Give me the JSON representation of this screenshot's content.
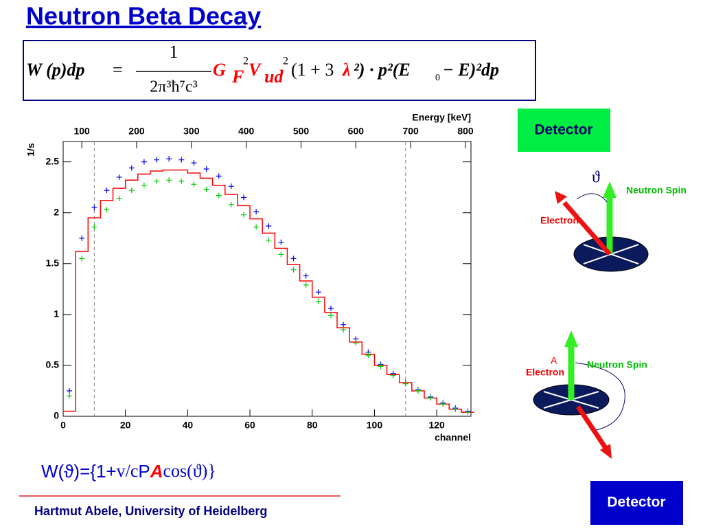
{
  "slide": {
    "title": "Neutron Beta Decay",
    "formula": [
      "W (p)dp",
      "=",
      "1",
      "2π³ħ⁷c³",
      "G",
      "F",
      "2",
      "V",
      "ud",
      "2",
      "(1 + 3",
      "λ",
      "²) · p²(E",
      "0",
      " − E)²dp"
    ],
    "detector_top": "Detector",
    "theta": "ϑ",
    "spin_top": "Neutron Spin",
    "electron_top": "Electron",
    "label_a": "A",
    "electron_bottom": "Electron",
    "spin_bottom": "Neutron Spin",
    "detector_bottom": "Detector",
    "asymmetry": [
      "W(ϑ)={1+",
      "v/c",
      "P",
      "A",
      "cos(ϑ)}"
    ],
    "footer": "Hartmut Abele, University of Heidelberg"
  },
  "chart_data": {
    "type": "scatter",
    "y_label": "1/s",
    "x_label": "channel",
    "x2_label": "Energy [keV]",
    "xlim": [
      0,
      131
    ],
    "xticks": [
      0,
      20,
      40,
      60,
      80,
      100,
      120
    ],
    "ylim": [
      0,
      2.7
    ],
    "yticks": [
      0,
      0.5,
      1,
      1.5,
      2,
      2.5
    ],
    "x2lim": [
      66,
      810
    ],
    "x2ticks": [
      100,
      200,
      300,
      400,
      500,
      600,
      700,
      800
    ],
    "vlines": [
      10,
      110
    ],
    "x": [
      2,
      6,
      10,
      14,
      18,
      22,
      26,
      30,
      34,
      38,
      42,
      46,
      50,
      54,
      58,
      62,
      66,
      70,
      74,
      78,
      82,
      86,
      90,
      94,
      98,
      102,
      106,
      110,
      114,
      118,
      122,
      126,
      130
    ],
    "series": [
      {
        "color": "#0000ff",
        "style": "marker",
        "values": [
          0.25,
          1.75,
          2.05,
          2.22,
          2.35,
          2.44,
          2.5,
          2.52,
          2.53,
          2.52,
          2.49,
          2.43,
          2.36,
          2.26,
          2.15,
          2.01,
          1.87,
          1.71,
          1.55,
          1.38,
          1.22,
          1.06,
          0.9,
          0.76,
          0.63,
          0.51,
          0.42,
          0.33,
          0.26,
          0.19,
          0.13,
          0.08,
          0.05
        ]
      },
      {
        "color": "#ff0000",
        "style": "step",
        "values": [
          0.05,
          1.62,
          1.95,
          2.12,
          2.24,
          2.32,
          2.38,
          2.41,
          2.42,
          2.42,
          2.39,
          2.34,
          2.27,
          2.18,
          2.07,
          1.94,
          1.8,
          1.65,
          1.49,
          1.33,
          1.17,
          1.02,
          0.87,
          0.73,
          0.61,
          0.5,
          0.41,
          0.33,
          0.25,
          0.18,
          0.12,
          0.07,
          0.04
        ]
      },
      {
        "color": "#00cc00",
        "style": "marker",
        "values": [
          0.2,
          1.55,
          1.86,
          2.03,
          2.14,
          2.22,
          2.27,
          2.31,
          2.32,
          2.31,
          2.28,
          2.23,
          2.17,
          2.08,
          1.98,
          1.86,
          1.73,
          1.59,
          1.44,
          1.29,
          1.13,
          0.99,
          0.85,
          0.72,
          0.6,
          0.49,
          0.4,
          0.32,
          0.25,
          0.18,
          0.12,
          0.07,
          0.04
        ]
      }
    ]
  }
}
